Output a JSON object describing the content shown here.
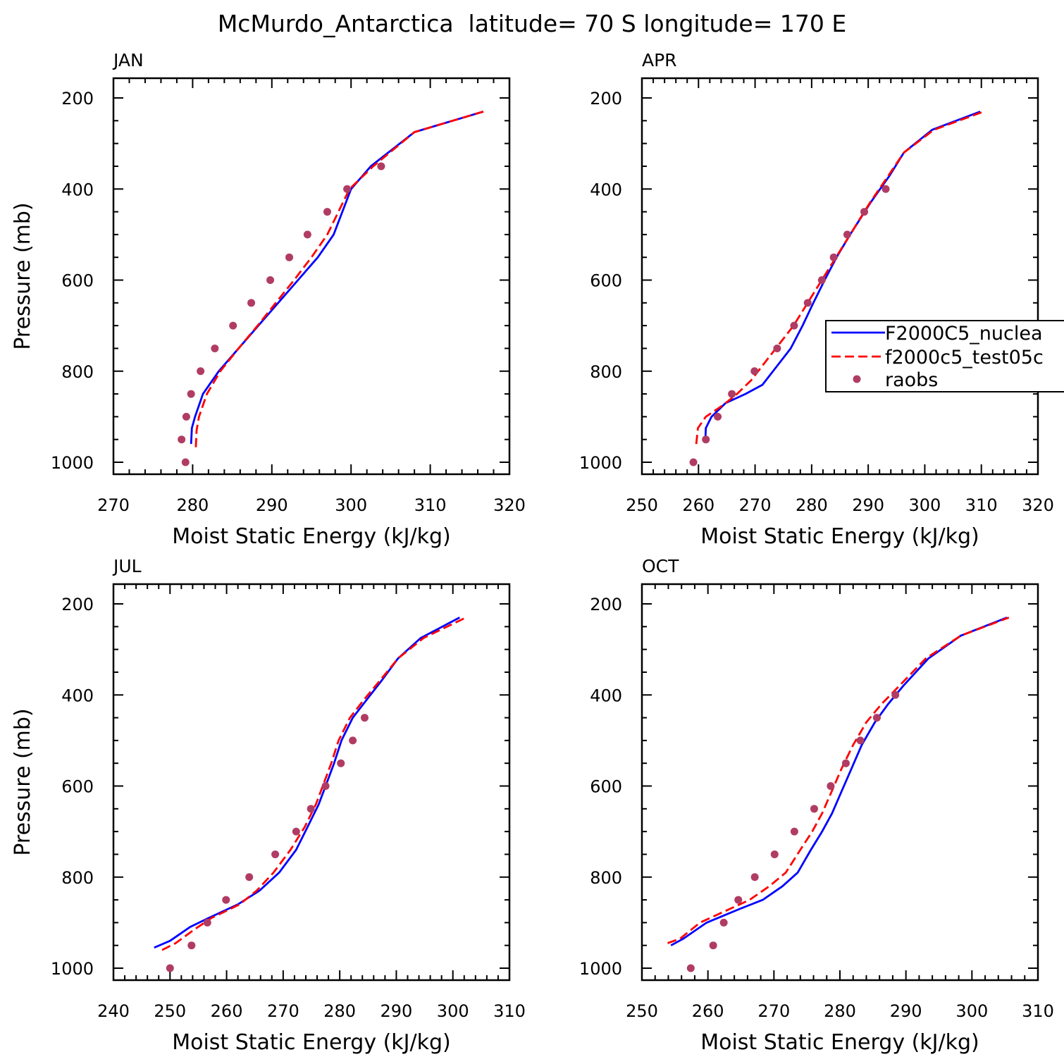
{
  "title": "McMurdo_Antarctica  latitude= 70 S longitude= 170 E",
  "colors": {
    "model1": "#0000ff",
    "model2": "#ff0000",
    "obs": "#b03c64",
    "axis": "#000000"
  },
  "legend": {
    "entries": [
      {
        "label": "F2000C5_nuclea",
        "style": "solid",
        "color": "#0000ff"
      },
      {
        "label": "f2000c5_test05c",
        "style": "dashed",
        "color": "#ff0000"
      },
      {
        "label": "raobs",
        "style": "marker",
        "color": "#b03c64"
      }
    ]
  },
  "chart_data": [
    {
      "type": "line",
      "panel": "JAN",
      "title": "JAN",
      "xlabel": "Moist Static Energy (kJ/kg)",
      "ylabel": "Pressure (mb)",
      "xlim": [
        270,
        320
      ],
      "ylim": [
        1000,
        200
      ],
      "xticks": [
        270,
        280,
        290,
        300,
        310,
        320
      ],
      "yticks": [
        200,
        400,
        600,
        800,
        1000
      ],
      "series": [
        {
          "name": "F2000C5_nuclea",
          "style": "solid",
          "x": [
            279.8,
            279.9,
            280.3,
            281.3,
            283.3,
            285.8,
            288.3,
            290.8,
            293.3,
            295.8,
            297.8,
            300.0,
            302.5,
            308.0,
            316.7
          ],
          "y": [
            960,
            925,
            900,
            850,
            800,
            750,
            700,
            650,
            600,
            550,
            500,
            400,
            350,
            275,
            230
          ]
        },
        {
          "name": "f2000c5_test05c",
          "style": "dashed",
          "x": [
            280.4,
            280.5,
            280.8,
            281.8,
            283.5,
            285.8,
            288.2,
            290.5,
            292.8,
            295.0,
            297.0,
            299.8,
            302.8,
            308.0,
            316.7
          ],
          "y": [
            967,
            930,
            900,
            850,
            800,
            750,
            700,
            650,
            600,
            550,
            500,
            400,
            350,
            275,
            230
          ]
        },
        {
          "name": "raobs",
          "style": "marker",
          "x": [
            279.1,
            278.6,
            279.2,
            279.8,
            281.0,
            282.8,
            285.1,
            287.4,
            289.8,
            292.2,
            294.5,
            297.0,
            299.5,
            303.8
          ],
          "y": [
            1000,
            950,
            900,
            850,
            800,
            750,
            700,
            650,
            600,
            550,
            500,
            450,
            400,
            350
          ]
        }
      ]
    },
    {
      "type": "line",
      "panel": "APR",
      "title": "APR",
      "xlabel": "Moist Static Energy (kJ/kg)",
      "ylabel": "Pressure (mb)",
      "xlim": [
        250,
        320
      ],
      "ylim": [
        1000,
        200
      ],
      "xticks": [
        250,
        260,
        270,
        280,
        290,
        300,
        310,
        320
      ],
      "yticks": [
        200,
        400,
        600,
        800,
        1000
      ],
      "series": [
        {
          "name": "F2000C5_nuclea",
          "style": "solid",
          "x": [
            261.2,
            261.3,
            262.3,
            264.8,
            268.3,
            271.3,
            273.8,
            276.3,
            278.4,
            280.3,
            282.3,
            284.4,
            286.8,
            290.4,
            293.8,
            296.3,
            301.3,
            309.8
          ],
          "y": [
            955,
            925,
            900,
            870,
            850,
            830,
            790,
            750,
            700,
            650,
            600,
            550,
            500,
            430,
            370,
            320,
            270,
            230
          ]
        },
        {
          "name": "f2000c5_test05c",
          "style": "dashed",
          "x": [
            259.6,
            259.9,
            261.3,
            264.3,
            266.8,
            269.3,
            271.8,
            274.3,
            276.8,
            279.3,
            281.8,
            284.3,
            286.8,
            290.3,
            293.6,
            296.3,
            301.6,
            310.4
          ],
          "y": [
            960,
            925,
            900,
            875,
            850,
            820,
            780,
            740,
            700,
            650,
            600,
            550,
            500,
            430,
            370,
            320,
            270,
            230
          ]
        },
        {
          "name": "raobs",
          "style": "marker",
          "x": [
            259.1,
            261.3,
            263.4,
            265.9,
            269.9,
            273.9,
            276.9,
            279.3,
            281.8,
            283.9,
            286.3,
            289.3,
            293.1
          ],
          "y": [
            1000,
            950,
            900,
            850,
            800,
            750,
            700,
            650,
            600,
            550,
            500,
            450,
            400
          ]
        }
      ]
    },
    {
      "type": "line",
      "panel": "JUL",
      "title": "JUL",
      "xlabel": "Moist Static Energy (kJ/kg)",
      "ylabel": "Pressure (mb)",
      "xlim": [
        240,
        310
      ],
      "ylim": [
        1000,
        200
      ],
      "xticks": [
        240,
        250,
        260,
        270,
        280,
        290,
        300,
        310
      ],
      "yticks": [
        200,
        400,
        600,
        800,
        1000
      ],
      "series": [
        {
          "name": "F2000C5_nuclea",
          "style": "solid",
          "x": [
            247.2,
            250.0,
            253.5,
            256.8,
            262.0,
            265.8,
            269.3,
            272.3,
            274.3,
            276.3,
            277.8,
            279.0,
            280.3,
            282.3,
            284.8,
            287.3,
            290.3,
            294.3,
            301.2
          ],
          "y": [
            955,
            940,
            910,
            890,
            860,
            830,
            790,
            740,
            690,
            640,
            590,
            550,
            500,
            450,
            410,
            370,
            320,
            275,
            230
          ]
        },
        {
          "name": "f2000c5_test05c",
          "style": "dashed",
          "x": [
            248.6,
            251.0,
            254.3,
            257.3,
            262.3,
            265.3,
            268.3,
            271.3,
            273.8,
            275.8,
            277.3,
            278.5,
            279.8,
            281.8,
            284.3,
            287.0,
            290.3,
            294.8,
            302.3
          ],
          "y": [
            960,
            945,
            915,
            890,
            860,
            830,
            790,
            740,
            690,
            640,
            590,
            550,
            500,
            450,
            410,
            370,
            320,
            275,
            230
          ]
        },
        {
          "name": "raobs",
          "style": "marker",
          "x": [
            250.0,
            253.8,
            256.6,
            259.9,
            264.0,
            268.6,
            272.3,
            274.9,
            277.5,
            280.2,
            282.3,
            284.4
          ],
          "y": [
            1000,
            950,
            900,
            850,
            800,
            750,
            700,
            650,
            600,
            550,
            500,
            450
          ]
        }
      ]
    },
    {
      "type": "line",
      "panel": "OCT",
      "title": "OCT",
      "xlabel": "Moist Static Energy (kJ/kg)",
      "ylabel": "Pressure (mb)",
      "xlim": [
        250,
        310
      ],
      "ylim": [
        1000,
        200
      ],
      "xticks": [
        250,
        260,
        270,
        280,
        290,
        300,
        310
      ],
      "yticks": [
        200,
        400,
        600,
        800,
        1000
      ],
      "series": [
        {
          "name": "F2000C5_nuclea",
          "style": "solid",
          "x": [
            254.4,
            256.3,
            259.8,
            264.8,
            268.3,
            271.3,
            273.6,
            275.6,
            277.3,
            278.8,
            280.3,
            281.8,
            283.3,
            285.3,
            287.3,
            289.6,
            293.4,
            298.3,
            305.3
          ],
          "y": [
            950,
            935,
            900,
            870,
            850,
            820,
            790,
            740,
            700,
            660,
            610,
            560,
            510,
            460,
            420,
            380,
            320,
            270,
            230
          ]
        },
        {
          "name": "f2000c5_test05c",
          "style": "dashed",
          "x": [
            253.9,
            255.8,
            258.8,
            263.3,
            266.3,
            269.3,
            271.8,
            274.0,
            275.8,
            277.3,
            278.8,
            280.3,
            282.0,
            284.0,
            286.3,
            289.0,
            293.0,
            298.3,
            305.6
          ],
          "y": [
            945,
            935,
            900,
            870,
            850,
            820,
            790,
            740,
            700,
            660,
            610,
            560,
            510,
            460,
            420,
            380,
            320,
            270,
            230
          ]
        },
        {
          "name": "raobs",
          "style": "marker",
          "x": [
            257.4,
            260.8,
            262.4,
            264.6,
            267.1,
            270.1,
            273.1,
            276.1,
            278.6,
            280.9,
            283.1,
            285.6,
            288.4
          ],
          "y": [
            1000,
            950,
            900,
            850,
            800,
            750,
            700,
            650,
            600,
            550,
            500,
            450,
            400
          ]
        }
      ]
    }
  ]
}
